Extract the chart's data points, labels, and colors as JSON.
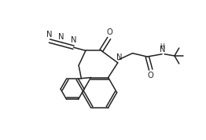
{
  "bg_color": "#ffffff",
  "line_color": "#222222",
  "line_width": 1.1,
  "font_size": 7.2,
  "fig_width": 2.62,
  "fig_height": 1.78,
  "xlim": [
    -0.5,
    10.5
  ],
  "ylim": [
    -0.5,
    7.5
  ]
}
